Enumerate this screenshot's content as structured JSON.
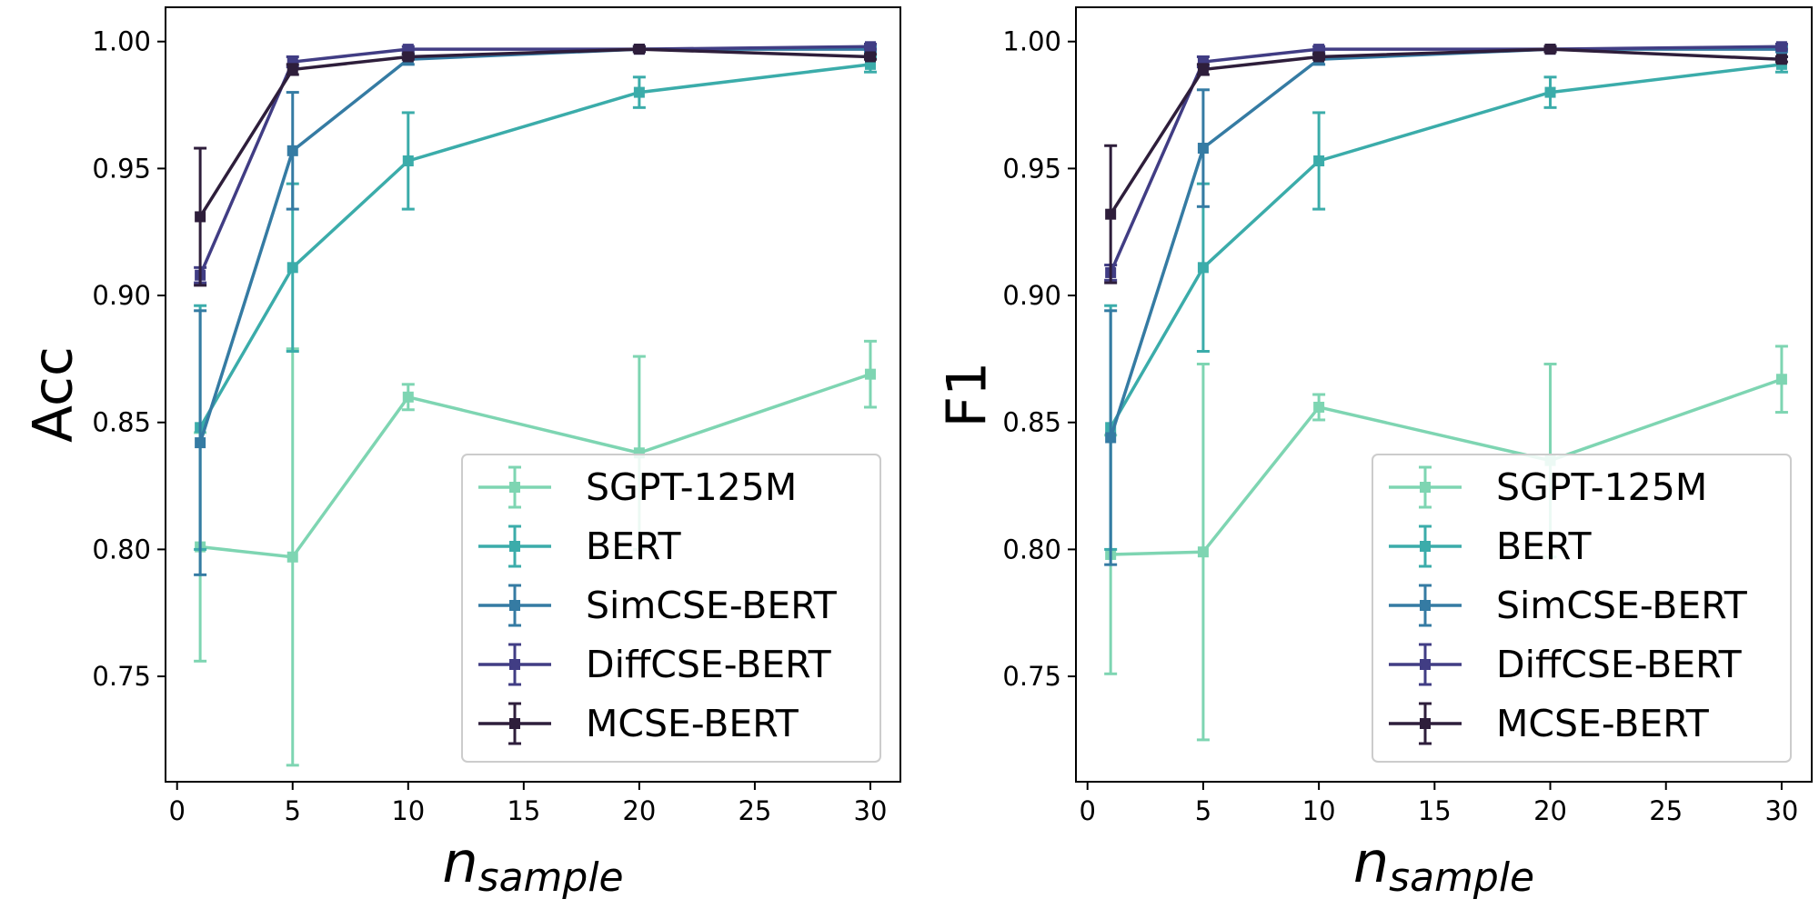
{
  "chart_data": [
    {
      "type": "line",
      "ylabel": "Acc",
      "xlabel_main": "n",
      "xlabel_sub": "sample",
      "xlim": [
        -0.5,
        31.3
      ],
      "ylim": [
        0.7085,
        1.0135
      ],
      "xticks": [
        0,
        5,
        10,
        15,
        20,
        25,
        30
      ],
      "xtick_labels": [
        "0",
        "5",
        "10",
        "15",
        "20",
        "25",
        "30"
      ],
      "yticks": [
        0.75,
        0.8,
        0.85,
        0.9,
        0.95,
        1.0
      ],
      "ytick_labels": [
        "0.75",
        "0.80",
        "0.85",
        "0.90",
        "0.95",
        "1.00"
      ],
      "legend_position": "lower-right",
      "x": [
        1,
        5,
        10,
        20,
        30
      ],
      "series": [
        {
          "name": "SGPT-125M",
          "color": "#7ed5b2",
          "values": [
            0.801,
            0.797,
            0.86,
            0.838,
            0.869
          ],
          "errors": [
            0.045,
            0.082,
            0.005,
            0.038,
            0.013
          ]
        },
        {
          "name": "BERT",
          "color": "#3bacaa",
          "values": [
            0.848,
            0.911,
            0.953,
            0.98,
            0.991
          ],
          "errors": [
            0.048,
            0.033,
            0.019,
            0.006,
            0.003
          ]
        },
        {
          "name": "SimCSE-BERT",
          "color": "#357ba3",
          "values": [
            0.842,
            0.957,
            0.993,
            0.997,
            0.997
          ],
          "errors": [
            0.052,
            0.023,
            0.002,
            0.001,
            0.001
          ]
        },
        {
          "name": "DiffCSE-BERT",
          "color": "#413d84",
          "values": [
            0.908,
            0.992,
            0.997,
            0.997,
            0.998
          ],
          "errors": [
            0.003,
            0.002,
            0.001,
            0.001,
            0.001
          ]
        },
        {
          "name": "MCSE-BERT",
          "color": "#2e1e3b",
          "values": [
            0.931,
            0.989,
            0.994,
            0.997,
            0.994
          ],
          "errors": [
            0.027,
            0.002,
            0.001,
            0.001,
            0.001
          ]
        }
      ]
    },
    {
      "type": "line",
      "ylabel": "F1",
      "xlabel_main": "n",
      "xlabel_sub": "sample",
      "xlim": [
        -0.5,
        31.3
      ],
      "ylim": [
        0.7085,
        1.0135
      ],
      "xticks": [
        0,
        5,
        10,
        15,
        20,
        25,
        30
      ],
      "xtick_labels": [
        "0",
        "5",
        "10",
        "15",
        "20",
        "25",
        "30"
      ],
      "yticks": [
        0.75,
        0.8,
        0.85,
        0.9,
        0.95,
        1.0
      ],
      "ytick_labels": [
        "0.75",
        "0.80",
        "0.85",
        "0.90",
        "0.95",
        "1.00"
      ],
      "legend_position": "lower-right",
      "x": [
        1,
        5,
        10,
        20,
        30
      ],
      "series": [
        {
          "name": "SGPT-125M",
          "color": "#7ed5b2",
          "values": [
            0.798,
            0.799,
            0.856,
            0.835,
            0.867
          ],
          "errors": [
            0.047,
            0.074,
            0.005,
            0.038,
            0.013
          ]
        },
        {
          "name": "BERT",
          "color": "#3bacaa",
          "values": [
            0.848,
            0.911,
            0.953,
            0.98,
            0.991
          ],
          "errors": [
            0.048,
            0.033,
            0.019,
            0.006,
            0.003
          ]
        },
        {
          "name": "SimCSE-BERT",
          "color": "#357ba3",
          "values": [
            0.844,
            0.958,
            0.993,
            0.997,
            0.997
          ],
          "errors": [
            0.05,
            0.023,
            0.002,
            0.001,
            0.001
          ]
        },
        {
          "name": "DiffCSE-BERT",
          "color": "#413d84",
          "values": [
            0.909,
            0.992,
            0.997,
            0.997,
            0.998
          ],
          "errors": [
            0.003,
            0.002,
            0.001,
            0.001,
            0.001
          ]
        },
        {
          "name": "MCSE-BERT",
          "color": "#2e1e3b",
          "values": [
            0.932,
            0.989,
            0.994,
            0.997,
            0.993
          ],
          "errors": [
            0.027,
            0.002,
            0.001,
            0.001,
            0.001
          ]
        }
      ]
    }
  ]
}
